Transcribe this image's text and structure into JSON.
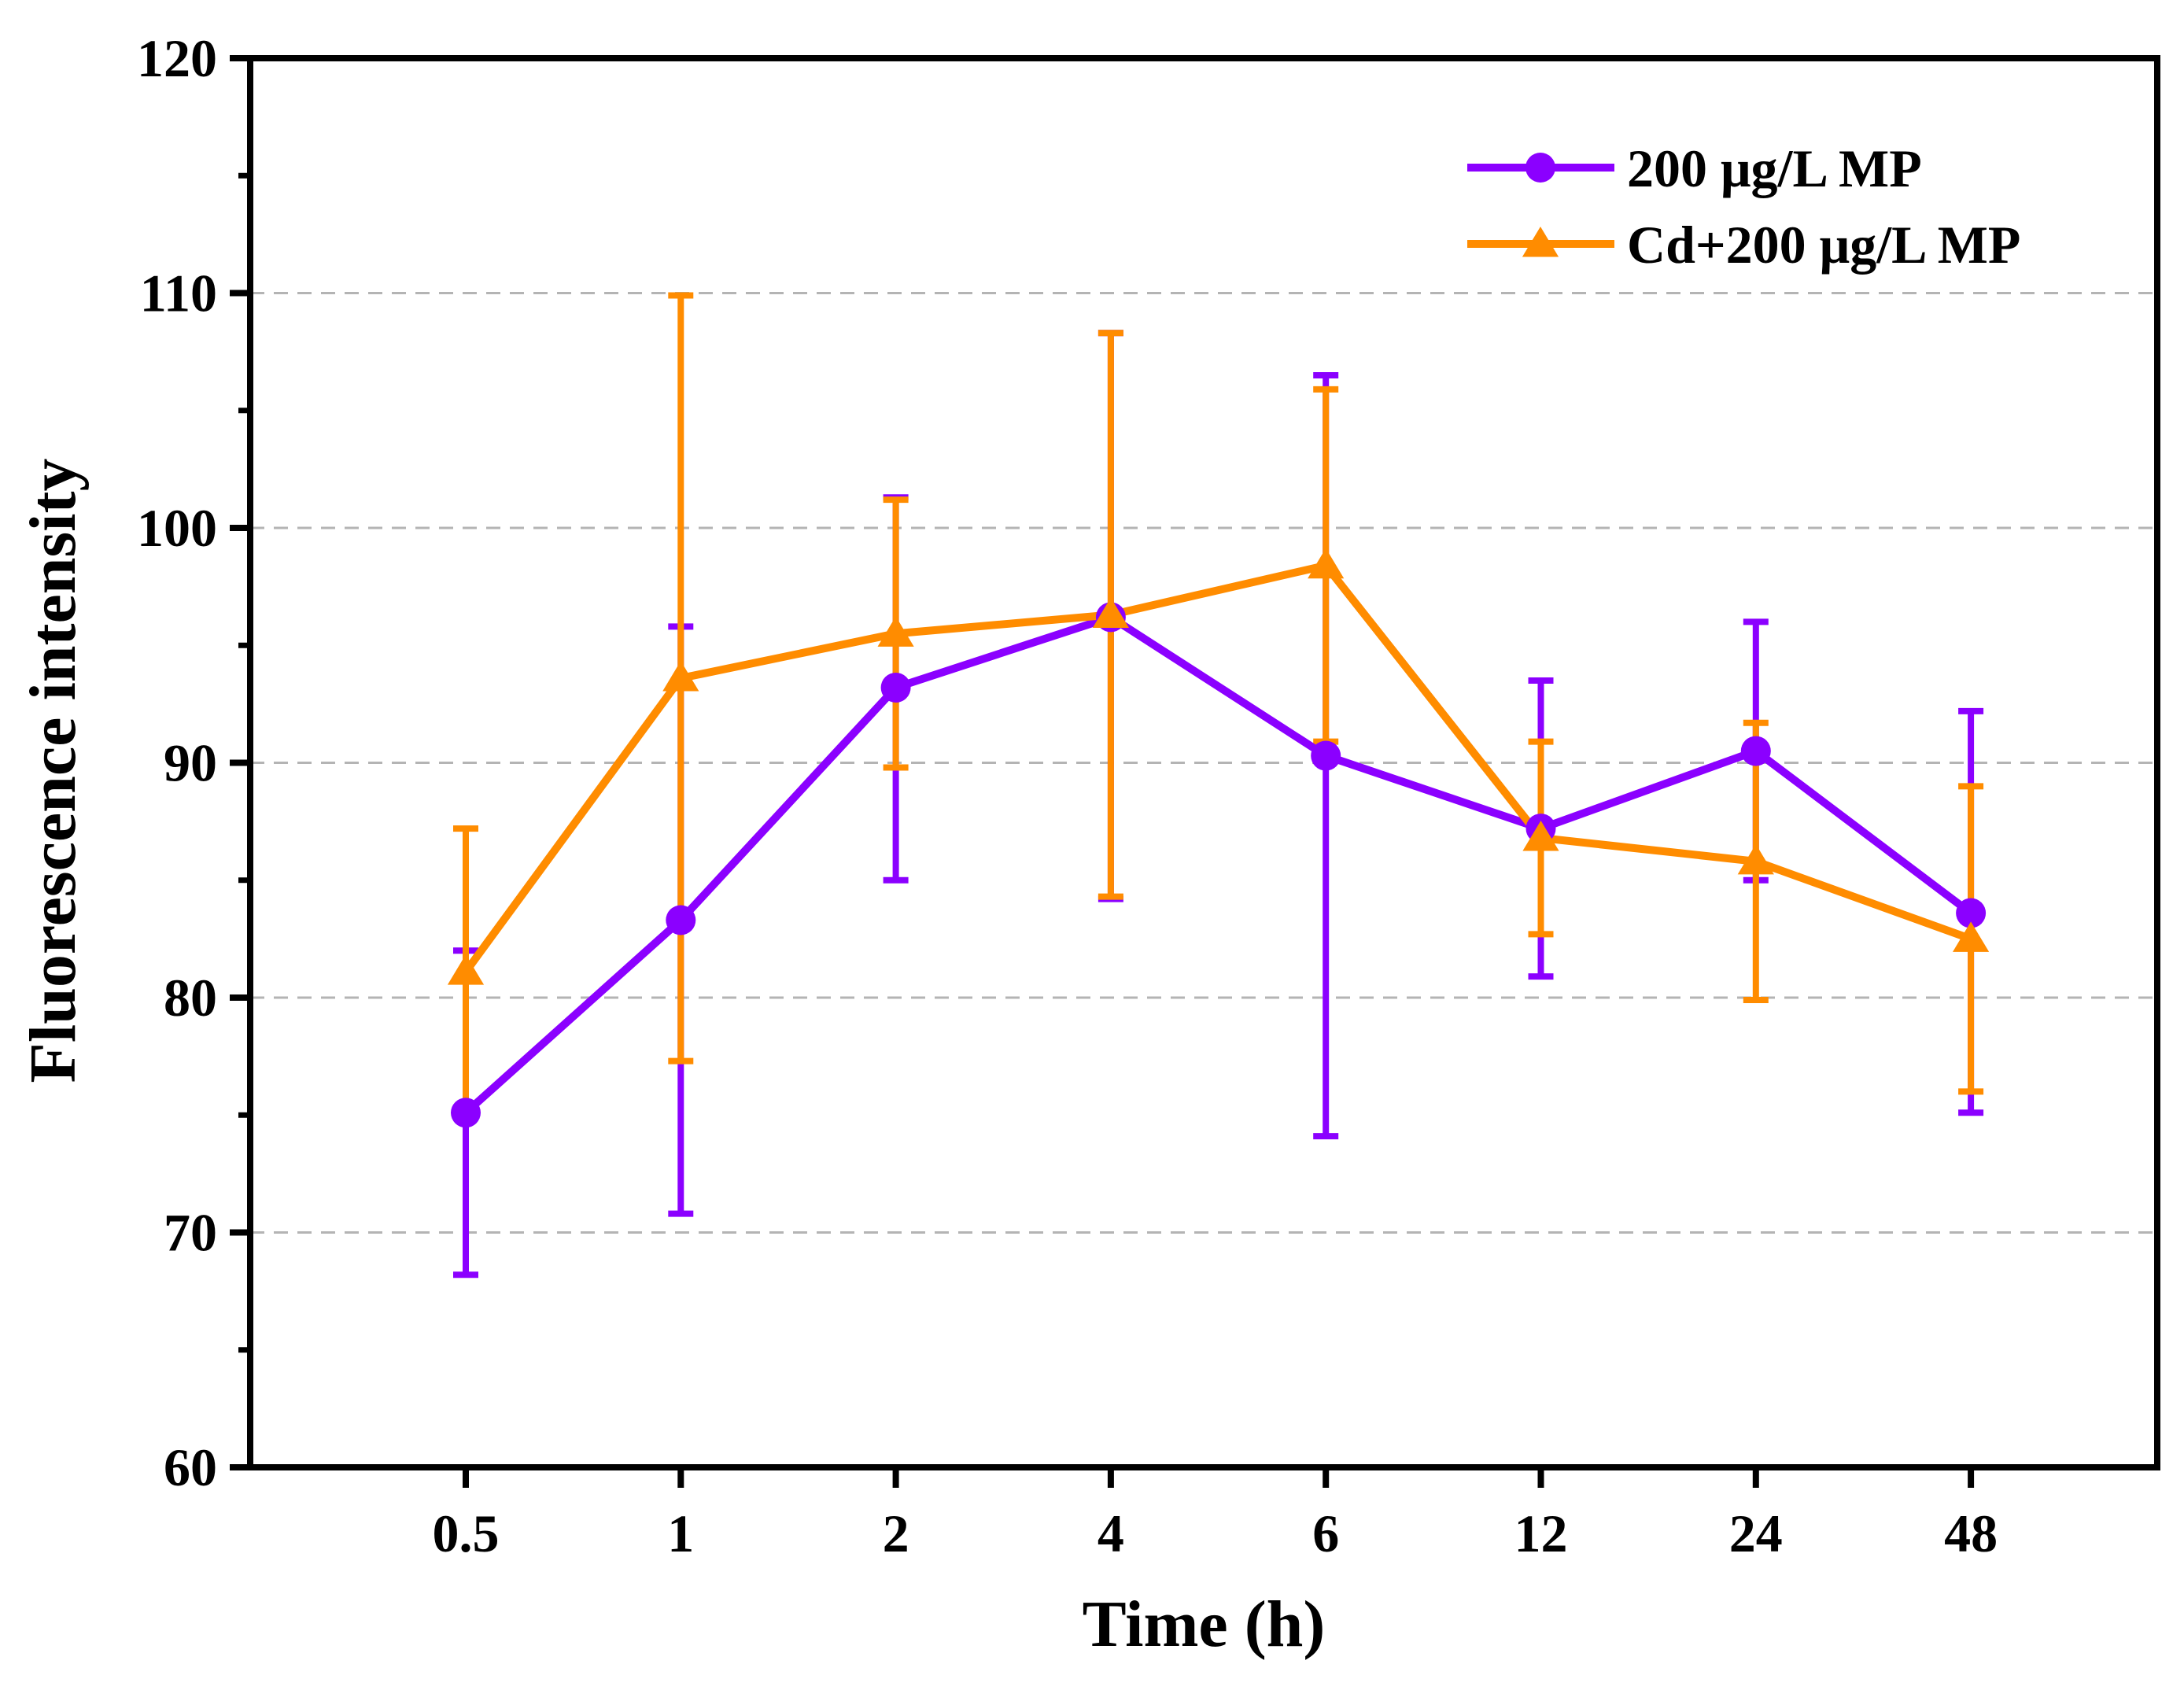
{
  "chart_data": {
    "type": "line",
    "title": "",
    "xlabel": "Time (h)",
    "ylabel": "Fluorescence intensity",
    "categories": [
      "0.5",
      "1",
      "2",
      "4",
      "6",
      "12",
      "24",
      "48"
    ],
    "ylim": [
      60,
      120
    ],
    "yticks": [
      "60",
      "70",
      "80",
      "90",
      "100",
      "110",
      "120"
    ],
    "ytick_values": [
      60,
      70,
      80,
      90,
      100,
      110,
      120
    ],
    "gridlines": "horizontal dashed",
    "legend_position": "top-right",
    "series": [
      {
        "name": "200 μg/L MP",
        "color": "#8B00FF",
        "marker": "circle",
        "values": [
          75.1,
          83.3,
          93.2,
          96.2,
          90.3,
          87.2,
          90.5,
          83.6
        ],
        "err_low": [
          68.2,
          70.8,
          85.0,
          84.2,
          74.1,
          80.9,
          85.0,
          75.1
        ],
        "err_high": [
          82.0,
          95.8,
          101.3,
          108.3,
          106.5,
          93.5,
          96.0,
          92.2
        ]
      },
      {
        "name": "Cd+200 μg/L MP",
        "color": "#FF8C00",
        "marker": "triangle",
        "values": [
          81.1,
          93.6,
          95.5,
          96.3,
          98.4,
          86.8,
          85.8,
          82.5
        ],
        "err_low": [
          75.0,
          77.3,
          89.8,
          84.3,
          90.9,
          82.7,
          79.9,
          76.0
        ],
        "err_high": [
          87.2,
          109.9,
          101.2,
          108.3,
          105.9,
          90.9,
          91.7,
          89.0
        ]
      }
    ]
  }
}
